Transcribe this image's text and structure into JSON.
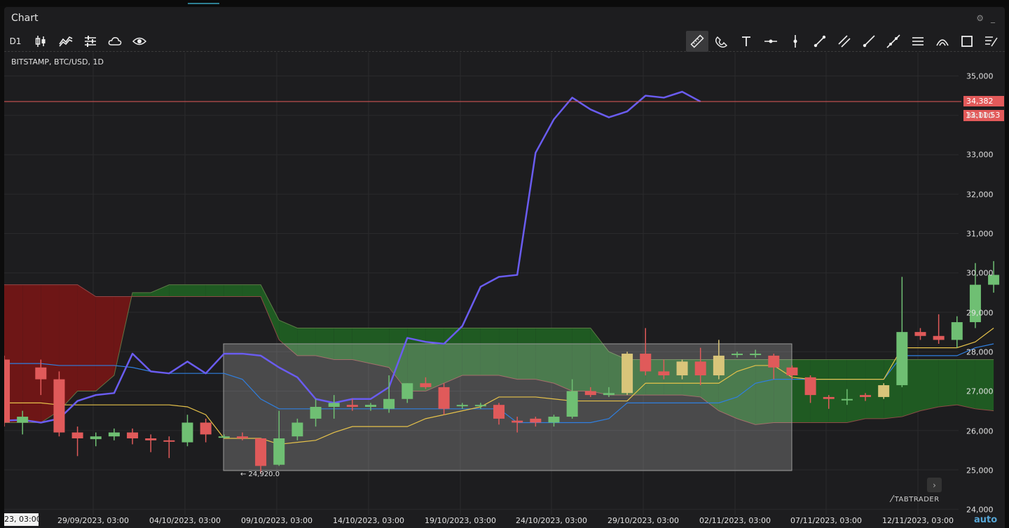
{
  "window": {
    "title": "Chart"
  },
  "toolbar": {
    "timeframe": "D1",
    "left_tools": [
      "candlestick-icon",
      "indicators-icon",
      "settings-sliders-icon",
      "cloud-icon",
      "eye-icon"
    ],
    "right_tools": [
      "ruler-icon",
      "magnet-icon",
      "text-icon",
      "horizontal-line-icon",
      "vertical-line-icon",
      "trend-line-icon",
      "parallel-channel-icon",
      "ray-icon",
      "extended-line-icon",
      "horizontal-ray-icon",
      "arc-icon",
      "rectangle-icon",
      "drawing-list-icon"
    ]
  },
  "symbol_label": "BITSTAMP, BTC/USD, 1D",
  "current_price": "34,382",
  "countdown": "13:11:53",
  "low_marker": "← 24,920.0",
  "brand": "TABTRADER",
  "auto_label": "auto",
  "x_axis": {
    "first_label": "23, 03:00",
    "labels": [
      "29/09/2023, 03:00",
      "04/10/2023, 03:00",
      "09/10/2023, 03:00",
      "14/10/2023, 03:00",
      "19/10/2023, 03:00",
      "24/10/2023, 03:00",
      "29/10/2023, 03:00",
      "02/11/2023, 03:00",
      "07/11/2023, 03:00",
      "12/11/2023, 03:00"
    ]
  },
  "y_axis": {
    "labels": [
      "35,000",
      "34,000",
      "33,000",
      "32,000",
      "31,000",
      "30,000",
      "29,000",
      "28,000",
      "27,000",
      "26,000",
      "25,000",
      "24,000"
    ]
  },
  "colors": {
    "up": "#6fbf73",
    "down": "#e05a5a",
    "neutral": "#d9c57a",
    "purple": "#6a5cf0",
    "tenkan": "#e6c24a",
    "kijun": "#2f7fe0",
    "cloud_green": "#1f5a22",
    "cloud_red": "#6e1616"
  },
  "chart_data": {
    "type": "candlestick",
    "ylim": [
      24000,
      35400
    ],
    "candles": [
      {
        "o": 27800,
        "h": 27900,
        "l": 26100,
        "c": 26200
      },
      {
        "o": 26200,
        "h": 26500,
        "l": 25900,
        "c": 26350
      },
      {
        "o": 27600,
        "h": 27800,
        "l": 26900,
        "c": 27300
      },
      {
        "o": 27300,
        "h": 27500,
        "l": 25850,
        "c": 25950
      },
      {
        "o": 25950,
        "h": 26100,
        "l": 25350,
        "c": 25800
      },
      {
        "o": 25780,
        "h": 25950,
        "l": 25600,
        "c": 25850
      },
      {
        "o": 25850,
        "h": 26050,
        "l": 25750,
        "c": 25950
      },
      {
        "o": 25950,
        "h": 26050,
        "l": 25650,
        "c": 25800
      },
      {
        "o": 25800,
        "h": 25900,
        "l": 25450,
        "c": 25750
      },
      {
        "o": 25750,
        "h": 25850,
        "l": 25300,
        "c": 25730
      },
      {
        "o": 25700,
        "h": 26400,
        "l": 25600,
        "c": 26200
      },
      {
        "o": 26200,
        "h": 26300,
        "l": 25700,
        "c": 25900
      },
      {
        "o": 25850,
        "h": 25900,
        "l": 25800,
        "c": 25850
      },
      {
        "o": 25850,
        "h": 25950,
        "l": 25750,
        "c": 25800
      },
      {
        "o": 25800,
        "h": 25800,
        "l": 24920,
        "c": 25100
      },
      {
        "o": 25130,
        "h": 26500,
        "l": 25100,
        "c": 25800
      },
      {
        "o": 25850,
        "h": 26300,
        "l": 25750,
        "c": 26200
      },
      {
        "o": 26300,
        "h": 26800,
        "l": 26100,
        "c": 26600
      },
      {
        "o": 26600,
        "h": 26900,
        "l": 26300,
        "c": 26700
      },
      {
        "o": 26650,
        "h": 26800,
        "l": 26500,
        "c": 26600
      },
      {
        "o": 26600,
        "h": 26700,
        "l": 26500,
        "c": 26650
      },
      {
        "o": 26550,
        "h": 27400,
        "l": 26450,
        "c": 26800
      },
      {
        "o": 26800,
        "h": 27200,
        "l": 26700,
        "c": 27200
      },
      {
        "o": 27200,
        "h": 27350,
        "l": 27050,
        "c": 27100
      },
      {
        "o": 27100,
        "h": 27200,
        "l": 26400,
        "c": 26550
      },
      {
        "o": 26650,
        "h": 26700,
        "l": 26550,
        "c": 26650
      },
      {
        "o": 26650,
        "h": 26700,
        "l": 26550,
        "c": 26650
      },
      {
        "o": 26650,
        "h": 26700,
        "l": 26150,
        "c": 26300
      },
      {
        "o": 26250,
        "h": 26350,
        "l": 25950,
        "c": 26200
      },
      {
        "o": 26300,
        "h": 26350,
        "l": 26100,
        "c": 26200
      },
      {
        "o": 26200,
        "h": 26400,
        "l": 26100,
        "c": 26350
      },
      {
        "o": 26350,
        "h": 27300,
        "l": 26300,
        "c": 27000
      },
      {
        "o": 27000,
        "h": 27100,
        "l": 26850,
        "c": 26900
      },
      {
        "o": 26900,
        "h": 27100,
        "l": 26850,
        "c": 26950
      },
      {
        "o": 26950,
        "h": 28000,
        "l": 26900,
        "c": 27950
      },
      {
        "o": 27950,
        "h": 28600,
        "l": 27400,
        "c": 27500
      },
      {
        "o": 27500,
        "h": 27800,
        "l": 27300,
        "c": 27400
      },
      {
        "o": 27400,
        "h": 27800,
        "l": 27300,
        "c": 27750
      },
      {
        "o": 27750,
        "h": 28100,
        "l": 27150,
        "c": 27400
      },
      {
        "o": 27400,
        "h": 28300,
        "l": 27300,
        "c": 27900
      },
      {
        "o": 27950,
        "h": 28000,
        "l": 27850,
        "c": 27950
      },
      {
        "o": 27950,
        "h": 28050,
        "l": 27850,
        "c": 27950
      },
      {
        "o": 27900,
        "h": 27950,
        "l": 27300,
        "c": 27600
      },
      {
        "o": 27600,
        "h": 27650,
        "l": 27300,
        "c": 27400
      },
      {
        "o": 27350,
        "h": 27400,
        "l": 26700,
        "c": 26900
      },
      {
        "o": 26850,
        "h": 26900,
        "l": 26550,
        "c": 26800
      },
      {
        "o": 26800,
        "h": 27050,
        "l": 26650,
        "c": 26800
      },
      {
        "o": 26900,
        "h": 26950,
        "l": 26750,
        "c": 26850
      },
      {
        "o": 26850,
        "h": 27200,
        "l": 26800,
        "c": 27150
      },
      {
        "o": 27150,
        "h": 29900,
        "l": 27100,
        "c": 28500
      },
      {
        "o": 28500,
        "h": 28600,
        "l": 28300,
        "c": 28400
      },
      {
        "o": 28400,
        "h": 28950,
        "l": 28200,
        "c": 28300
      },
      {
        "o": 28300,
        "h": 28900,
        "l": 28100,
        "c": 28750
      },
      {
        "o": 28750,
        "h": 30250,
        "l": 28600,
        "c": 29700
      },
      {
        "o": 29700,
        "h": 30300,
        "l": 29500,
        "c": 29950
      }
    ],
    "purple_line": [
      26250,
      26270,
      26200,
      26300,
      26750,
      26900,
      26950,
      27950,
      27500,
      27450,
      27750,
      27450,
      27950,
      27950,
      27900,
      27600,
      27350,
      26800,
      26700,
      26800,
      26800,
      27100,
      28350,
      28250,
      28200,
      28650,
      29650,
      29900,
      29950,
      33050,
      33900,
      34450,
      34150,
      33950,
      34100,
      34500,
      34450,
      34600,
      34350
    ],
    "tenkan": [
      26700,
      26700,
      26700,
      26650,
      26650,
      26650,
      26650,
      26650,
      26650,
      26650,
      26600,
      26400,
      25800,
      25800,
      25800,
      25650,
      25700,
      25750,
      25950,
      26100,
      26100,
      26100,
      26100,
      26300,
      26400,
      26500,
      26600,
      26850,
      26850,
      26850,
      26800,
      26750,
      26750,
      26750,
      26750,
      27200,
      27200,
      27200,
      27200,
      27200,
      27500,
      27650,
      27650,
      27350,
      27300,
      27300,
      27300,
      27300,
      27300,
      28100,
      28100,
      28100,
      28100,
      28250,
      28600
    ],
    "kijun": [
      27700,
      27700,
      27700,
      27650,
      27650,
      27650,
      27650,
      27600,
      27500,
      27450,
      27450,
      27450,
      27450,
      27300,
      26800,
      26550,
      26550,
      26550,
      26550,
      26550,
      26550,
      26550,
      26550,
      26550,
      26550,
      26550,
      26550,
      26550,
      26200,
      26200,
      26200,
      26200,
      26200,
      26300,
      26700,
      26700,
      26700,
      26700,
      26700,
      26700,
      26850,
      27200,
      27300,
      27300,
      27300,
      27300,
      27300,
      27300,
      27300,
      27900,
      27900,
      27900,
      27900,
      28100,
      28200
    ],
    "span_a": [
      26200,
      26200,
      26200,
      26500,
      27000,
      27000,
      27400,
      29500,
      29500,
      29700,
      29700,
      29700,
      29700,
      29700,
      29700,
      28800,
      28600,
      28600,
      28600,
      28600,
      28600,
      28600,
      28600,
      28600,
      28600,
      28600,
      28600,
      28600,
      28600,
      28600,
      28600,
      28600,
      28600,
      28000,
      27800,
      27800,
      27800,
      27800,
      27800,
      27800,
      27800,
      27800,
      27800,
      27800,
      27800,
      27800,
      27800,
      27800,
      27800,
      27800,
      27800,
      27800,
      27800,
      27800,
      27800
    ],
    "span_b": [
      29700,
      29700,
      29700,
      29700,
      29700,
      29400,
      29400,
      29400,
      29400,
      29400,
      29400,
      29400,
      29400,
      29400,
      29400,
      28300,
      27900,
      27900,
      27800,
      27800,
      27700,
      27600,
      27000,
      27000,
      27200,
      27400,
      27400,
      27400,
      27300,
      27300,
      27200,
      27000,
      27000,
      26900,
      26900,
      26900,
      26900,
      26900,
      26850,
      26500,
      26300,
      26150,
      26200,
      26200,
      26200,
      26200,
      26200,
      26300,
      26300,
      26350,
      26500,
      26600,
      26650,
      26550,
      26500
    ]
  }
}
